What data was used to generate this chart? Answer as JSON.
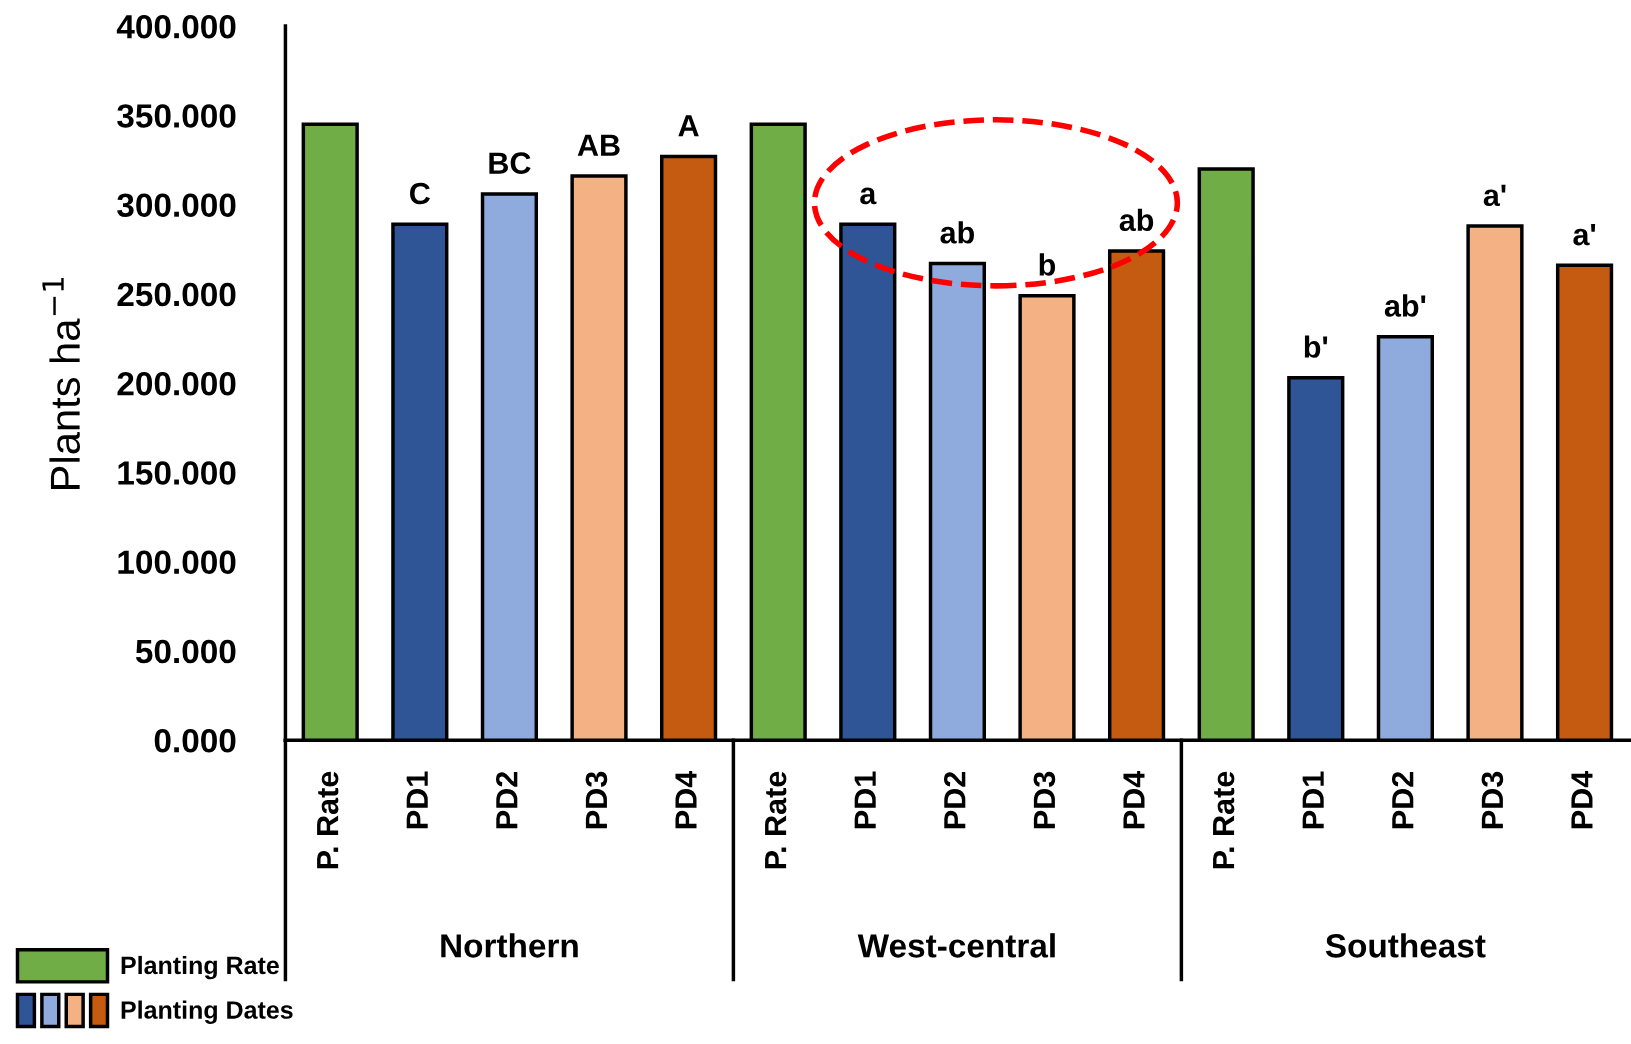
{
  "chart_data": {
    "type": "bar",
    "ylabel": "Plants ha$^{−1}$",
    "categories": [
      "P. Rate",
      "PD1",
      "PD2",
      "PD3",
      "PD4",
      "P. Rate",
      "PD1",
      "PD2",
      "PD3",
      "PD4",
      "P. Rate",
      "PD1",
      "PD2",
      "PD3",
      "PD4"
    ],
    "series": [
      {
        "name": "Planting Rate",
        "color": "#70ad47",
        "values": [
          345,
          null,
          null,
          null,
          null,
          345,
          null,
          null,
          null,
          null,
          320,
          null,
          null,
          null,
          null
        ]
      },
      {
        "name": "Planting Dates",
        "colors": [
          null,
          "#2f5597",
          "#8faadc",
          "#f4b183",
          "#c55a11",
          null,
          "#2f5597",
          "#8faadc",
          "#f4b183",
          "#c55a11",
          null,
          "#2f5597",
          "#8faadc",
          "#f4b183",
          "#c55a11"
        ],
        "values": [
          null,
          289,
          306,
          316,
          327,
          null,
          289,
          267,
          249,
          274,
          null,
          203,
          226,
          288,
          266
        ],
        "value_labels": [
          null,
          "C",
          "BC",
          "AB",
          "A",
          null,
          "a",
          "ab",
          "b",
          "ab",
          null,
          "b'",
          "ab'",
          "a'",
          "a'"
        ]
      }
    ],
    "ylim": [
      0,
      400
    ],
    "yticks": [
      {
        "value": 0,
        "label": "0.000"
      },
      {
        "value": 50,
        "label": "50.000"
      },
      {
        "value": 100,
        "label": "100.000"
      },
      {
        "value": 150,
        "label": "150.000"
      },
      {
        "value": 200,
        "label": "200.000"
      },
      {
        "value": 250,
        "label": "250.000"
      },
      {
        "value": 300,
        "label": "300.000"
      },
      {
        "value": 350,
        "label": "350.000"
      },
      {
        "value": 400,
        "label": "400.000"
      }
    ],
    "legend": "bottom left",
    "annotations": [
      "Northern",
      "West-central",
      "Southeast"
    ]
  }
}
